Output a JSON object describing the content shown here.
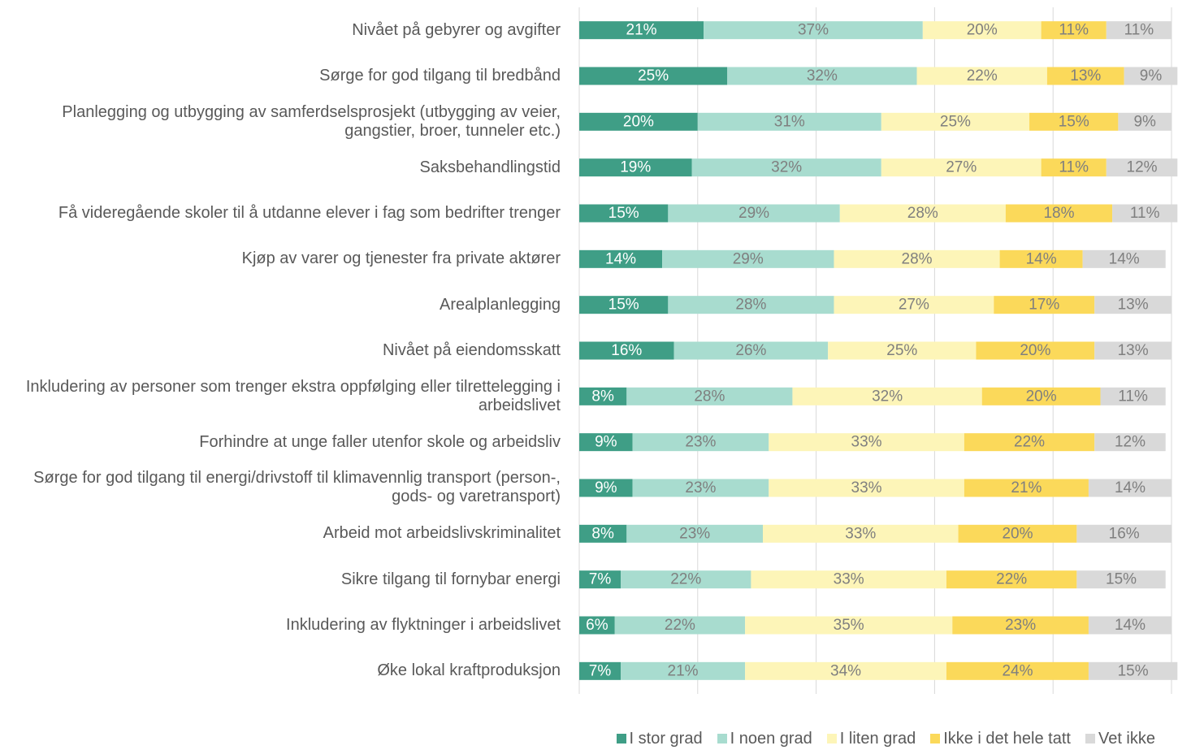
{
  "chart_data": {
    "type": "stacked-bar-horizontal",
    "categories": [
      "Nivået på gebyrer og avgifter",
      "Sørge for god tilgang til bredbånd",
      "Planlegging og utbygging av samferdselsprosjekt (utbygging av veier, gangstier, broer, tunneler etc.)",
      "Saksbehandlingstid",
      "Få videregående skoler til å utdanne elever i fag som bedrifter trenger",
      "Kjøp av varer og tjenester fra private aktører",
      "Arealplanlegging",
      "Nivået på eiendomsskatt",
      "Inkludering av personer som trenger ekstra oppfølging eller tilrettelegging i arbeidslivet",
      "Forhindre at unge faller utenfor skole og arbeidsliv",
      "Sørge for god tilgang til energi/drivstoff til klimavennlig transport (person-, gods- og varetransport)",
      "Arbeid mot arbeidslivskriminalitet",
      "Sikre tilgang til fornybar energi",
      "Inkludering av flyktninger i arbeidslivet",
      "Øke lokal kraftproduksjon"
    ],
    "series": [
      {
        "name": "I stor grad",
        "color": "#3f9e86",
        "values": [
          21,
          25,
          20,
          19,
          15,
          14,
          15,
          16,
          8,
          9,
          9,
          8,
          7,
          6,
          7
        ],
        "value_labels": [
          "21%",
          "25%",
          "20%",
          "19%",
          "15%",
          "14%",
          "15%",
          "16%",
          "8%",
          "9%",
          "9%",
          "8%",
          "7%",
          "6%",
          "7%"
        ]
      },
      {
        "name": "I noen grad",
        "color": "#a8dccf",
        "values": [
          37,
          32,
          31,
          32,
          29,
          29,
          28,
          26,
          28,
          23,
          23,
          23,
          22,
          22,
          21
        ],
        "value_labels": [
          "37%",
          "32%",
          "31%",
          "32%",
          "29%",
          "29%",
          "28%",
          "26%",
          "28%",
          "23%",
          "23%",
          "23%",
          "22%",
          "22%",
          "21%"
        ]
      },
      {
        "name": "I liten grad",
        "color": "#fdf5b8",
        "values": [
          20,
          22,
          25,
          27,
          28,
          28,
          27,
          25,
          32,
          33,
          33,
          33,
          33,
          35,
          34
        ],
        "value_labels": [
          "20%",
          "22%",
          "25%",
          "27%",
          "28%",
          "28%",
          "27%",
          "25%",
          "32%",
          "33%",
          "33%",
          "33%",
          "33%",
          "35%",
          "34%"
        ]
      },
      {
        "name": "Ikke i det hele tatt",
        "color": "#fbd95a",
        "values": [
          11,
          13,
          15,
          11,
          18,
          14,
          17,
          20,
          20,
          22,
          21,
          20,
          22,
          23,
          24
        ],
        "value_labels": [
          "11%",
          "13%",
          "15%",
          "11%",
          "18%",
          "14%",
          "17%",
          "20%",
          "20%",
          "22%",
          "21%",
          "20%",
          "22%",
          "23%",
          "24%"
        ]
      },
      {
        "name": "Vet ikke",
        "color": "#d9d9d9",
        "values": [
          11,
          9,
          9,
          12,
          11,
          14,
          13,
          13,
          11,
          12,
          14,
          16,
          15,
          14,
          15
        ],
        "value_labels": [
          "11%",
          "9%",
          "9%",
          "12%",
          "11%",
          "14%",
          "13%",
          "13%",
          "11%",
          "12%",
          "14%",
          "16%",
          "15%",
          "14%",
          "15%"
        ]
      }
    ],
    "xlim": [
      0,
      100
    ],
    "xticks": [
      0,
      20,
      40,
      60,
      80,
      100
    ],
    "grid": true,
    "legend": "bottom-right"
  }
}
